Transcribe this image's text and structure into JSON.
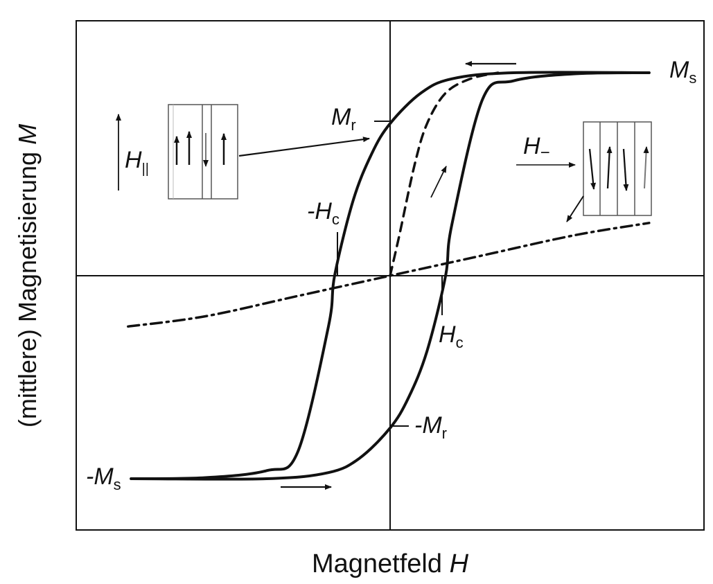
{
  "chart_data": {
    "type": "line",
    "title": "",
    "xlabel": {
      "text": "Magnetfeld ",
      "symbol": "H"
    },
    "ylabel": {
      "text": "(mittlere) Magnetisierung ",
      "symbol": "M"
    },
    "xlim": [
      -1.0,
      1.0
    ],
    "ylim": [
      -1.2,
      1.2
    ],
    "Hc": 0.18,
    "Ms": 1.0,
    "Mr": 0.75,
    "series": [
      {
        "style": "solid",
        "values": [
          [
            -0.84,
            -1.0
          ],
          [
            -0.6,
            -0.995
          ],
          [
            -0.4,
            -0.96
          ],
          [
            -0.3,
            -0.87
          ],
          [
            -0.2,
            -0.25
          ],
          [
            -0.18,
            0.0
          ],
          [
            -0.12,
            0.37
          ],
          [
            -0.06,
            0.6
          ],
          [
            0.0,
            0.75
          ],
          [
            0.1,
            0.9
          ],
          [
            0.2,
            0.97
          ],
          [
            0.4,
            1.0
          ],
          [
            0.84,
            1.0
          ]
        ]
      },
      {
        "style": "solid",
        "values": [
          [
            -0.84,
            -1.0
          ],
          [
            -0.4,
            -1.0
          ],
          [
            -0.2,
            -0.97
          ],
          [
            -0.1,
            -0.9
          ],
          [
            0.0,
            -0.75
          ],
          [
            0.06,
            -0.6
          ],
          [
            0.12,
            -0.37
          ],
          [
            0.18,
            0.0
          ],
          [
            0.2,
            0.25
          ],
          [
            0.3,
            0.87
          ],
          [
            0.4,
            0.96
          ],
          [
            0.6,
            0.995
          ],
          [
            0.84,
            1.0
          ]
        ]
      },
      {
        "style": "dashed",
        "values": [
          [
            0.0,
            0.0
          ],
          [
            0.03,
            0.2
          ],
          [
            0.08,
            0.55
          ],
          [
            0.12,
            0.75
          ],
          [
            0.18,
            0.9
          ],
          [
            0.26,
            0.97
          ],
          [
            0.35,
            1.0
          ]
        ]
      },
      {
        "style": "dashdot",
        "values": [
          [
            -0.85,
            -0.25
          ],
          [
            -0.6,
            -0.2
          ],
          [
            -0.3,
            -0.1
          ],
          [
            0.0,
            0.0
          ],
          [
            0.3,
            0.1
          ],
          [
            0.6,
            0.2
          ],
          [
            0.84,
            0.26
          ]
        ]
      }
    ],
    "labels": [
      {
        "base": "M",
        "sub": "s"
      },
      {
        "base": "M",
        "sub": "r"
      },
      {
        "base": "-H",
        "sub": "c"
      },
      {
        "base": "H",
        "sub": "c"
      },
      {
        "base": "-M",
        "sub": "r"
      },
      {
        "base": "-M",
        "sub": "s"
      },
      {
        "base": "H",
        "sub": "||"
      },
      {
        "base": "H",
        "sub": "−"
      }
    ],
    "grid": false,
    "legend": "none"
  }
}
